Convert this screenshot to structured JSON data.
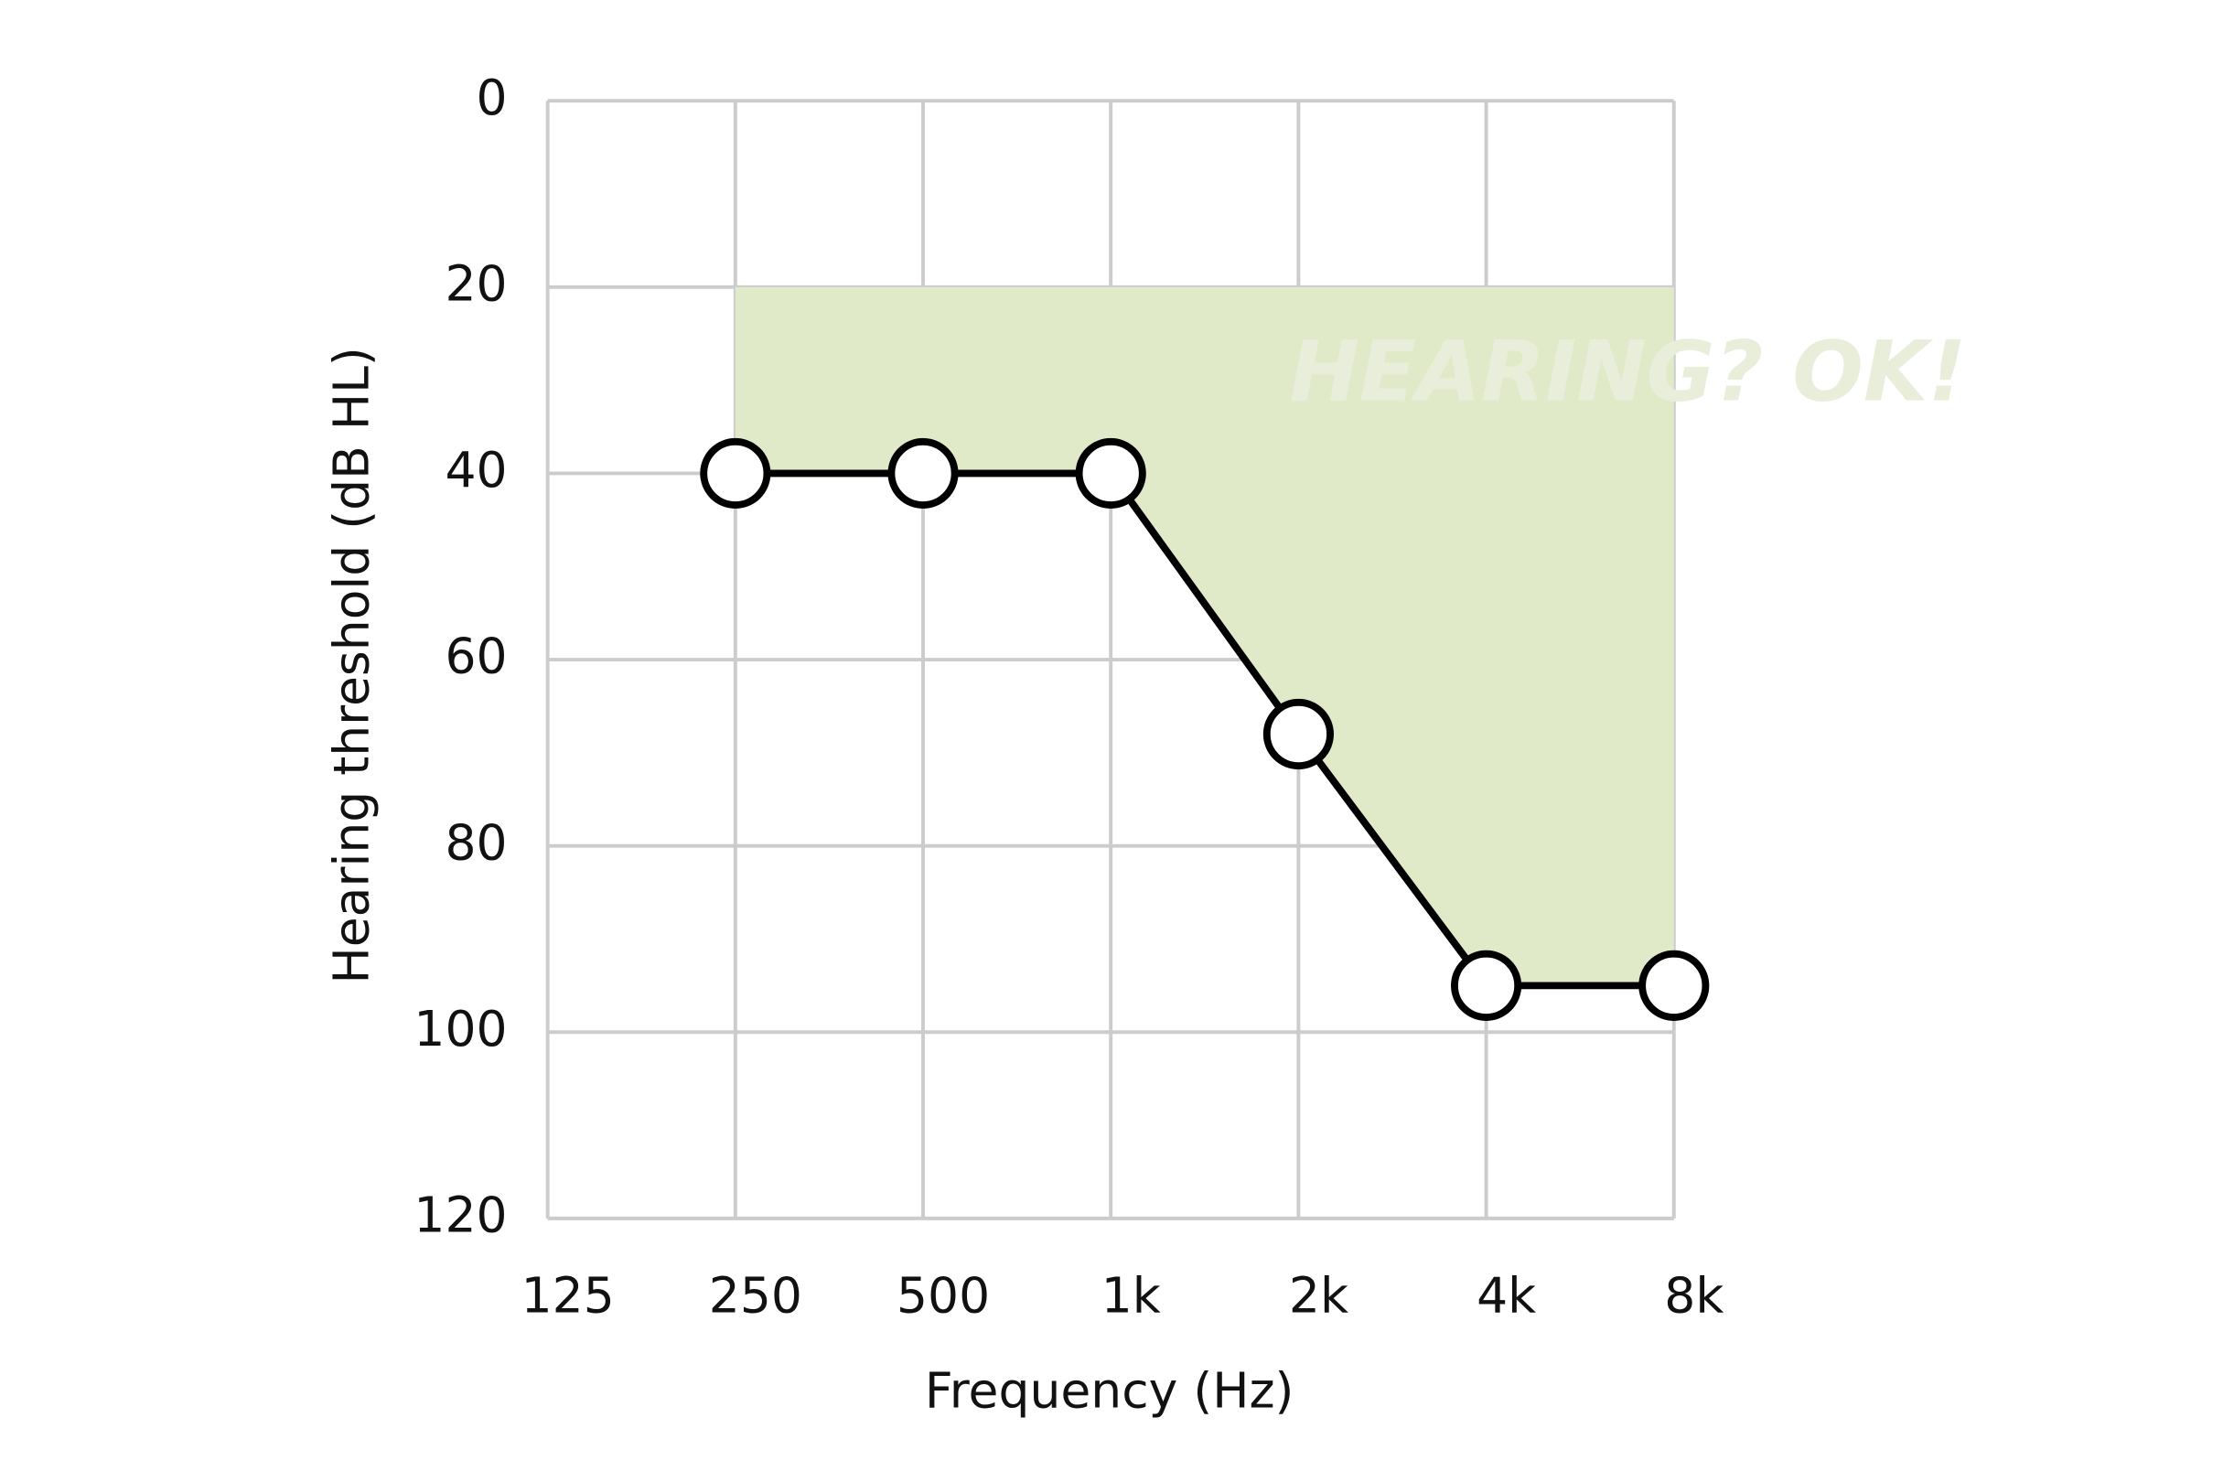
{
  "chart_data": {
    "type": "line",
    "x_label": "Frequency (Hz)",
    "y_label": "Hearing threshold (dB HL)",
    "x": [
      250,
      500,
      1000,
      2000,
      4000,
      8000
    ],
    "values": [
      40,
      40,
      40,
      68,
      95,
      95
    ],
    "color": "#000000",
    "marker_fill": "#ffffff",
    "x_log": true,
    "y_inverted": true,
    "xlim": [
      125,
      8000
    ],
    "xticks": [
      125,
      250,
      500,
      {
        "value": 1000,
        "label": "1k"
      },
      {
        "value": 2000,
        "label": "2k"
      },
      {
        "value": 4000,
        "label": "4k"
      },
      {
        "value": 8000,
        "label": "8k"
      }
    ],
    "ylim": [
      0,
      120
    ],
    "yticks": [
      0,
      20,
      40,
      60,
      80,
      100,
      120
    ],
    "grid": true,
    "grid_color": "#cccccc",
    "shade": {
      "from": 20,
      "color": "#e1eac8"
    },
    "watermark": {
      "text": "HEARING? OK!",
      "color": "#e9eedb"
    }
  }
}
